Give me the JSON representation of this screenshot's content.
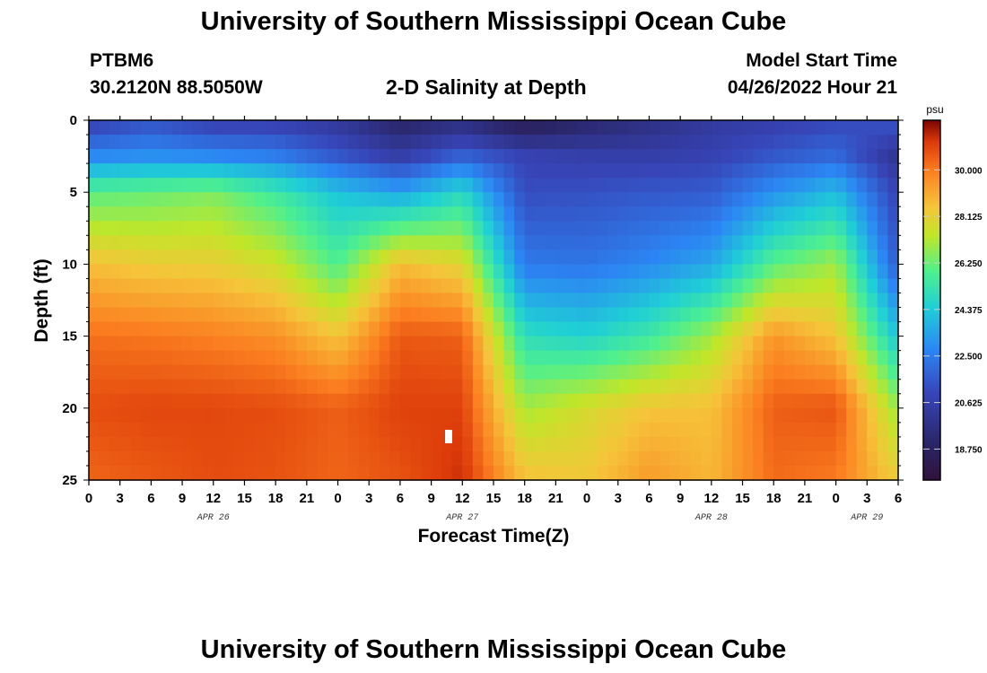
{
  "header": {
    "title": "University of Southern Mississippi Ocean Cube",
    "station": "PTBM6",
    "coords": "30.2120N  88.5050W",
    "subtitle": "2-D Salinity at Depth",
    "model_start_label": "Model Start Time",
    "model_start_value": "04/26/2022 Hour 21"
  },
  "footer": {
    "title": "University of Southern Mississippi Ocean Cube"
  },
  "chart_data": {
    "type": "heatmap",
    "title": "2-D Salinity at Depth",
    "xlabel": "Forecast Time(Z)",
    "ylabel": "Depth (ft)",
    "x_tick_labels": [
      "0",
      "3",
      "6",
      "9",
      "12",
      "15",
      "18",
      "21",
      "0",
      "3",
      "6",
      "9",
      "12",
      "15",
      "18",
      "21",
      "0",
      "3",
      "6",
      "9",
      "12",
      "15",
      "18",
      "21",
      "0",
      "3",
      "6"
    ],
    "x_hours": [
      0,
      78
    ],
    "day_labels": [
      {
        "label": "APR 26",
        "hour": 12
      },
      {
        "label": "APR 27",
        "hour": 36
      },
      {
        "label": "APR 28",
        "hour": 60
      },
      {
        "label": "APR 29",
        "hour": 75
      }
    ],
    "ylim": [
      0,
      25
    ],
    "y_ticks": [
      0,
      5,
      10,
      15,
      20,
      25
    ],
    "y_inverted": true,
    "colorbar": {
      "unit": "psu",
      "range": [
        17.5,
        32.0
      ],
      "ticks": [
        "30.000",
        "28.125",
        "26.250",
        "24.375",
        "22.500",
        "20.625",
        "18.750"
      ],
      "tick_values": [
        30.0,
        28.125,
        26.25,
        24.375,
        22.5,
        20.625,
        18.75
      ]
    },
    "grid_hours": [
      0,
      6,
      12,
      18,
      24,
      30,
      36,
      42,
      48,
      54,
      60,
      66,
      72,
      78
    ],
    "grid_depths_ft": [
      0,
      2.5,
      5,
      10,
      15,
      20,
      25
    ],
    "salinity_psu": [
      [
        20.6,
        21.3,
        20.6,
        20.6,
        20.1,
        18.8,
        19.4,
        18.2,
        19.0,
        19.6,
        20.3,
        20.6,
        21.0,
        21.5
      ],
      [
        22.8,
        23.0,
        22.8,
        22.5,
        21.5,
        20.5,
        21.8,
        20.8,
        20.6,
        20.6,
        20.8,
        21.5,
        22.0,
        20.0
      ],
      [
        26.0,
        26.2,
        26.5,
        25.5,
        24.2,
        23.4,
        24.8,
        21.2,
        21.3,
        21.5,
        21.6,
        23.0,
        24.0,
        20.8
      ],
      [
        28.6,
        28.3,
        28.2,
        27.6,
        25.8,
        28.7,
        28.0,
        22.4,
        22.3,
        22.8,
        23.5,
        26.0,
        27.0,
        21.5
      ],
      [
        30.2,
        30.1,
        29.9,
        29.6,
        28.5,
        30.6,
        30.5,
        25.0,
        24.6,
        25.5,
        27.0,
        29.5,
        28.5,
        24.2
      ],
      [
        30.8,
        30.9,
        30.9,
        30.8,
        30.5,
        31.0,
        31.0,
        27.0,
        27.8,
        28.5,
        28.6,
        30.5,
        30.7,
        26.8
      ],
      [
        30.4,
        30.6,
        30.8,
        30.7,
        30.4,
        30.7,
        31.3,
        28.6,
        28.4,
        29.4,
        28.8,
        30.3,
        30.0,
        28.3
      ]
    ]
  }
}
